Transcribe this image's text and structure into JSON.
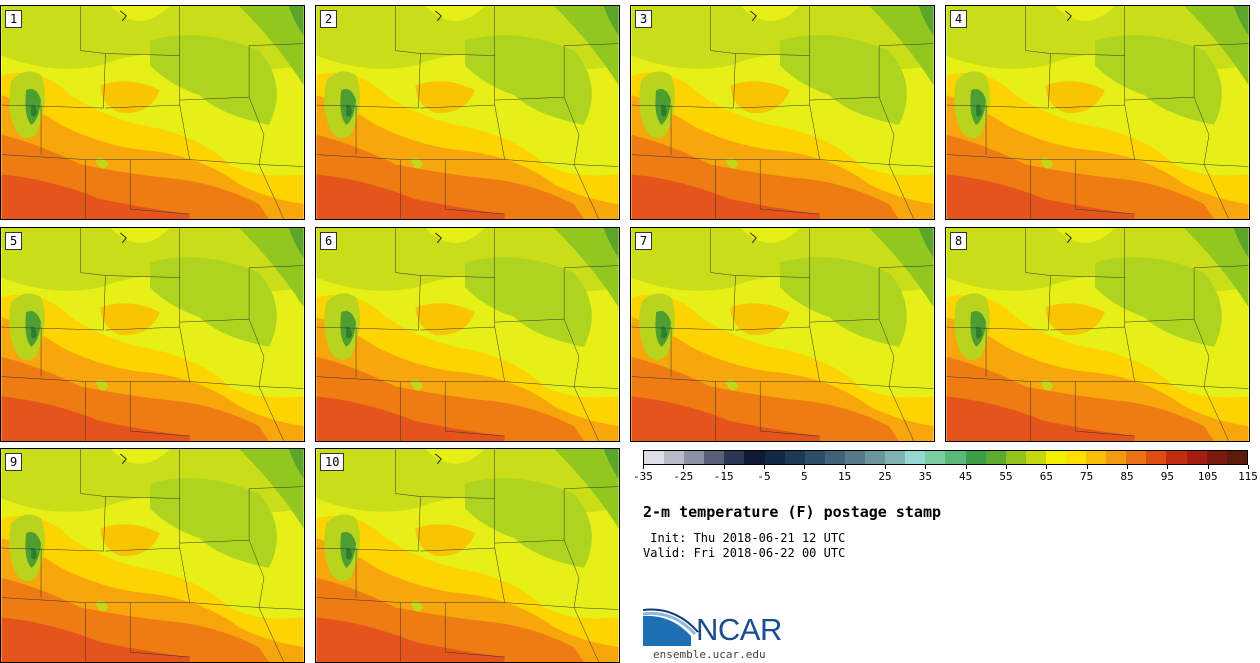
{
  "title": "2-m temperature (F) postage stamp",
  "init": " Init: Thu 2018-06-21 12 UTC",
  "valid": "Valid: Fri 2018-06-22 00 UTC",
  "org": "NCAR",
  "url": "ensemble.ucar.edu",
  "members": [
    "1",
    "2",
    "3",
    "4",
    "5",
    "6",
    "7",
    "8",
    "9",
    "10"
  ],
  "colorbar": {
    "colors": [
      "#dcdee5",
      "#b8bcc8",
      "#8c92a6",
      "#5a6079",
      "#2e3656",
      "#0f1a33",
      "#122845",
      "#1d3a55",
      "#2c4e66",
      "#3f6478",
      "#557b8a",
      "#6a969b",
      "#7fb3b2",
      "#94d9d0",
      "#7acda0",
      "#5bb878",
      "#3e9e47",
      "#5daa2c",
      "#94c21c",
      "#c5d90f",
      "#f1f000",
      "#fedf00",
      "#f8be07",
      "#f39a0e",
      "#ec7314",
      "#e04d13",
      "#c32d0f",
      "#a41d10",
      "#7c1a10",
      "#5e1a0a"
    ],
    "ticks": [
      "-35",
      "-25",
      "-15",
      "-5",
      "5",
      "15",
      "25",
      "35",
      "45",
      "55",
      "65",
      "75",
      "85",
      "95",
      "105",
      "115"
    ]
  },
  "icons": {
    "logo": "ncar-logo-icon"
  }
}
